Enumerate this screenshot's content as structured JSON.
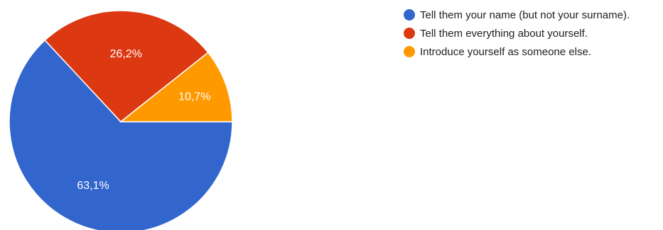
{
  "chart_data": {
    "type": "pie",
    "title": "",
    "slices": [
      {
        "label": "Tell them your name (but not your surname).",
        "value": 63.1,
        "display": "63,1%",
        "color": "#3366cc"
      },
      {
        "label": "Tell them everything about yourself.",
        "value": 26.2,
        "display": "26,2%",
        "color": "#dc3912"
      },
      {
        "label": "Introduce yourself as someone else.",
        "value": 10.7,
        "display": "10,7%",
        "color": "#ff9900"
      }
    ],
    "legend_position": "right"
  }
}
